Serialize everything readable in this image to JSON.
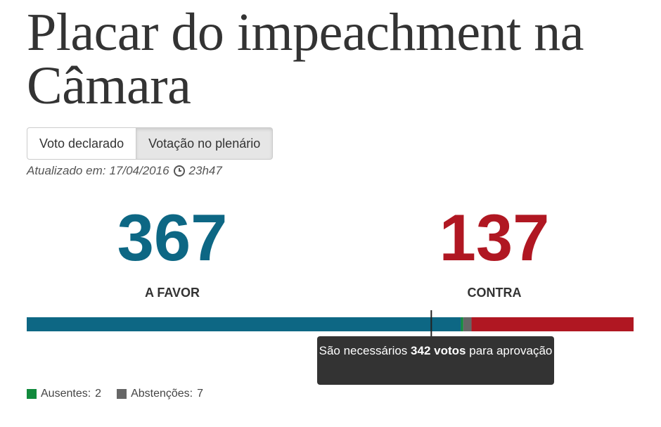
{
  "header": {
    "title": "Placar do impeachment na Câmara"
  },
  "tabs": [
    {
      "label": "Voto declarado",
      "active": false
    },
    {
      "label": "Votação no plenário",
      "active": true
    }
  ],
  "updated": {
    "label": "Atualizado em:",
    "date": "17/04/2016",
    "time": "23h47"
  },
  "tally": {
    "favor": {
      "value": 367,
      "label": "A FAVOR",
      "color": "#0d6784"
    },
    "ausentes": {
      "value": 2,
      "label": "Ausentes:",
      "color": "#118a3c"
    },
    "abstencoes": {
      "value": 7,
      "label": "Abstenções:",
      "color": "#666666"
    },
    "contra": {
      "value": 137,
      "label": "CONTRA",
      "color": "#b01722"
    }
  },
  "threshold": {
    "value": 342,
    "prefix": "São necessários",
    "unit": "votos",
    "suffix": "para aprovação"
  }
}
